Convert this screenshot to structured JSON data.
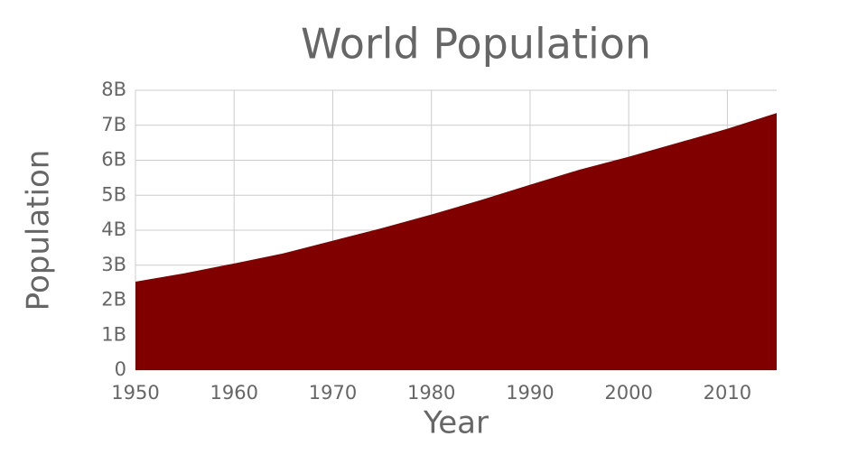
{
  "chart_data": {
    "type": "area",
    "title": "World Population",
    "x_label": "Year",
    "y_label": "Population",
    "x": [
      1950,
      1955,
      1960,
      1965,
      1970,
      1975,
      1980,
      1985,
      1990,
      1995,
      2000,
      2005,
      2010,
      2015
    ],
    "series": [
      {
        "name": "Population",
        "color": "#800000",
        "values": [
          2530000000,
          2770000000,
          3050000000,
          3340000000,
          3700000000,
          4060000000,
          4450000000,
          4860000000,
          5300000000,
          5730000000,
          6100000000,
          6500000000,
          6900000000,
          7350000000
        ]
      }
    ],
    "xlim": [
      1950,
      2015
    ],
    "xticks": [
      1950,
      1960,
      1970,
      1980,
      1990,
      2000,
      2010
    ],
    "ylim": [
      0,
      8000000000
    ],
    "yticks": [
      0,
      {
        "value": 1000000000,
        "label": "1B"
      },
      {
        "value": 2000000000,
        "label": "2B"
      },
      {
        "value": 3000000000,
        "label": "3B"
      },
      {
        "value": 4000000000,
        "label": "4B"
      },
      {
        "value": 5000000000,
        "label": "5B"
      },
      {
        "value": 6000000000,
        "label": "6B"
      },
      {
        "value": 7000000000,
        "label": "7B"
      },
      {
        "value": 8000000000,
        "label": "8B"
      }
    ],
    "grid": true
  }
}
